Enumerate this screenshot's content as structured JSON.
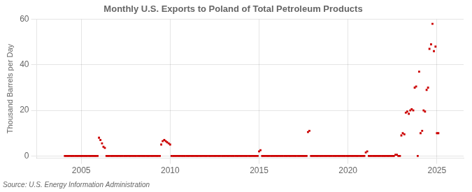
{
  "chart_data": {
    "type": "scatter",
    "title": "Monthly U.S. Exports to Poland of Total Petroleum Products",
    "ylabel": "Thousand Barrels per Day",
    "annotation": "Source: U.S. Energy Information Administration",
    "color": "#cc0000",
    "marker": "square",
    "grid": true,
    "xlim": [
      2002.5,
      2026.5
    ],
    "xticks": [
      2005,
      2010,
      2015,
      2020,
      2025
    ],
    "ylim": [
      -1,
      60
    ],
    "yticks": [
      0,
      20,
      40,
      60
    ],
    "x": [
      2004.08,
      2004.17,
      2004.25,
      2004.33,
      2004.42,
      2004.5,
      2004.58,
      2004.67,
      2004.75,
      2004.83,
      2004.92,
      2005.0,
      2005.08,
      2005.17,
      2005.25,
      2005.33,
      2005.42,
      2005.5,
      2005.58,
      2005.67,
      2005.75,
      2005.83,
      2005.92,
      2006.0,
      2006.08,
      2006.17,
      2006.25,
      2006.33,
      2006.42,
      2006.5,
      2006.58,
      2006.67,
      2006.75,
      2006.83,
      2006.92,
      2007.0,
      2007.08,
      2007.17,
      2007.25,
      2007.33,
      2007.42,
      2007.5,
      2007.58,
      2007.67,
      2007.75,
      2007.83,
      2007.92,
      2008.0,
      2008.08,
      2008.17,
      2008.25,
      2008.33,
      2008.42,
      2008.5,
      2008.58,
      2008.67,
      2008.75,
      2008.83,
      2008.92,
      2009.0,
      2009.08,
      2009.17,
      2009.25,
      2009.33,
      2009.42,
      2009.5,
      2009.58,
      2009.67,
      2009.75,
      2009.83,
      2009.92,
      2010.0,
      2010.08,
      2010.17,
      2010.25,
      2010.33,
      2010.42,
      2010.5,
      2010.58,
      2010.67,
      2010.75,
      2010.83,
      2010.92,
      2011.0,
      2011.08,
      2011.17,
      2011.25,
      2011.33,
      2011.42,
      2011.5,
      2011.58,
      2011.67,
      2011.75,
      2011.83,
      2011.92,
      2012.0,
      2012.08,
      2012.17,
      2012.25,
      2012.33,
      2012.42,
      2012.5,
      2012.58,
      2012.67,
      2012.75,
      2012.83,
      2012.92,
      2013.0,
      2013.08,
      2013.17,
      2013.25,
      2013.33,
      2013.42,
      2013.5,
      2013.58,
      2013.67,
      2013.75,
      2013.83,
      2013.92,
      2014.0,
      2014.08,
      2014.17,
      2014.25,
      2014.33,
      2014.42,
      2014.5,
      2014.58,
      2014.67,
      2014.75,
      2014.83,
      2014.92,
      2015.0,
      2015.08,
      2015.17,
      2015.25,
      2015.33,
      2015.42,
      2015.5,
      2015.58,
      2015.67,
      2015.75,
      2015.83,
      2015.92,
      2016.0,
      2016.08,
      2016.17,
      2016.25,
      2016.33,
      2016.42,
      2016.5,
      2016.58,
      2016.67,
      2016.75,
      2016.83,
      2016.92,
      2017.0,
      2017.08,
      2017.17,
      2017.25,
      2017.33,
      2017.42,
      2017.5,
      2017.58,
      2017.67,
      2017.75,
      2017.83,
      2017.92,
      2018.0,
      2018.08,
      2018.17,
      2018.25,
      2018.33,
      2018.42,
      2018.5,
      2018.58,
      2018.67,
      2018.75,
      2018.83,
      2018.92,
      2019.0,
      2019.08,
      2019.17,
      2019.25,
      2019.33,
      2019.42,
      2019.5,
      2019.58,
      2019.67,
      2019.75,
      2019.83,
      2019.92,
      2020.0,
      2020.08,
      2020.17,
      2020.25,
      2020.33,
      2020.42,
      2020.5,
      2020.58,
      2020.67,
      2020.75,
      2020.83,
      2020.92,
      2021.0,
      2021.08,
      2021.17,
      2021.25,
      2021.33,
      2021.42,
      2021.5,
      2021.58,
      2021.67,
      2021.75,
      2021.83,
      2021.92,
      2022.0,
      2022.08,
      2022.17,
      2022.25,
      2022.33,
      2022.42,
      2022.5,
      2022.58,
      2022.67,
      2022.75,
      2022.83,
      2022.92,
      2023.0,
      2023.08,
      2023.17,
      2023.25,
      2023.33,
      2023.42,
      2023.5,
      2023.58,
      2023.67,
      2023.75,
      2023.83,
      2023.92,
      2024.0,
      2024.08,
      2024.17,
      2024.25,
      2024.33,
      2024.42,
      2024.5,
      2024.58,
      2024.67,
      2024.75,
      2024.83,
      2024.92,
      2025.0,
      2025.08
    ],
    "values": [
      0,
      0,
      0,
      0,
      0,
      0,
      0,
      0,
      0,
      0,
      0,
      0,
      0,
      0,
      0,
      0,
      0,
      0,
      0,
      0,
      0,
      0,
      0,
      8.0,
      7.0,
      5.5,
      4.0,
      3.5,
      0,
      0,
      0,
      0,
      0,
      0,
      0,
      0,
      0,
      0,
      0,
      0,
      0,
      0,
      0,
      0,
      0,
      0,
      0,
      0,
      0,
      0,
      0,
      0,
      0,
      0,
      0,
      0,
      0,
      0,
      0,
      0,
      0,
      0,
      0,
      0,
      0,
      5.0,
      6.5,
      7.0,
      6.5,
      6.0,
      5.5,
      5.0,
      0,
      0,
      0,
      0,
      0,
      0,
      0,
      0,
      0,
      0,
      0,
      0,
      0,
      0,
      0,
      0,
      0,
      0,
      0,
      0,
      0,
      0,
      0,
      0,
      0,
      0,
      0,
      0,
      0,
      0,
      0,
      0,
      0,
      0,
      0,
      0,
      0,
      0,
      0,
      0,
      0,
      0,
      0,
      0,
      0,
      0,
      0,
      0,
      0,
      0,
      0,
      0,
      0,
      0,
      0,
      0,
      0,
      0,
      0,
      2.0,
      2.5,
      0,
      0,
      0,
      0,
      0,
      0,
      0,
      0,
      0,
      0,
      0,
      0,
      0,
      0,
      0,
      0,
      0,
      0,
      0,
      0,
      0,
      0,
      0,
      0,
      0,
      0,
      0,
      0,
      0,
      0,
      0,
      10.5,
      11.0,
      0,
      0,
      0,
      0,
      0,
      0,
      0,
      0,
      0,
      0,
      0,
      0,
      0,
      0,
      0,
      0,
      0,
      0,
      0,
      0,
      0,
      0,
      0,
      0,
      0,
      0,
      0,
      0,
      0,
      0,
      0,
      0,
      0,
      0,
      0,
      0,
      0,
      1.5,
      2.0,
      0,
      0,
      0,
      0,
      0,
      0,
      0,
      0,
      0,
      0,
      0,
      0,
      0,
      0,
      0,
      0,
      0,
      0,
      0.5,
      0.5,
      0,
      0,
      9.0,
      10.0,
      9.5,
      19.0,
      19.5,
      18.5,
      20.0,
      20.5,
      20.0,
      30.0,
      30.5,
      0,
      37.0,
      10.0,
      11.0,
      20.0,
      19.5,
      29.0,
      30.0,
      47.0,
      49.0,
      58.0,
      46.0,
      48.0,
      10.0,
      10.0
    ]
  }
}
